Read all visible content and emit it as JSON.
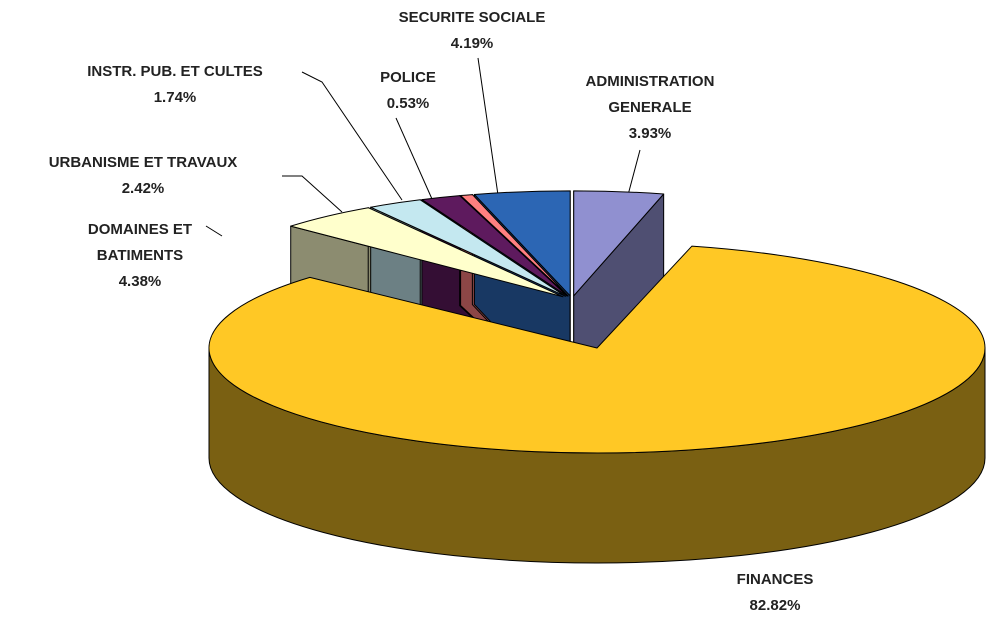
{
  "chart_data": {
    "type": "pie3d",
    "categories": [
      "ADMINISTRATION GENERALE",
      "FINANCES",
      "DOMAINES ET BATIMENTS",
      "URBANISME ET TRAVAUX",
      "INSTR. PUB. ET CULTES",
      "POLICE",
      "SECURITE SOCIALE"
    ],
    "values": [
      3.93,
      82.82,
      4.38,
      2.42,
      1.74,
      0.53,
      4.19
    ],
    "value_labels": [
      "3.93%",
      "82.82%",
      "4.38%",
      "2.42%",
      "1.74%",
      "0.53%",
      "4.19%"
    ],
    "colors": [
      "#9090d0",
      "#ffc825",
      "#ffffcc",
      "#c4e8f0",
      "#5e1a5e",
      "#ff8080",
      "#2c66b4"
    ]
  }
}
